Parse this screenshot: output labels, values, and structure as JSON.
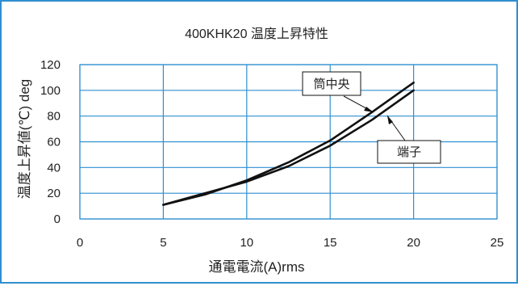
{
  "chart_data": {
    "type": "line",
    "title": "400KHK20 温度上昇特性",
    "xlabel": "通電電流(A)rms",
    "ylabel": "温度上昇値(℃) deg",
    "xlim": [
      0,
      25
    ],
    "ylim": [
      0,
      120
    ],
    "x_ticks": [
      "0",
      "5",
      "10",
      "15",
      "20",
      "25"
    ],
    "y_ticks": [
      "0",
      "20",
      "40",
      "60",
      "80",
      "100",
      "120"
    ],
    "grid": true,
    "gridline_color": "#2f8fd0",
    "series": [
      {
        "name": "筒中央",
        "x": [
          5,
          7.5,
          10,
          12.5,
          15,
          17.5,
          20
        ],
        "y": [
          11,
          19,
          30,
          44,
          61,
          83,
          106
        ]
      },
      {
        "name": "端子",
        "x": [
          5,
          7.5,
          10,
          12.5,
          15,
          17.5,
          20
        ],
        "y": [
          11,
          20,
          29,
          41,
          57,
          77,
          100
        ]
      }
    ],
    "annotations": [
      "筒中央",
      "端子"
    ]
  }
}
